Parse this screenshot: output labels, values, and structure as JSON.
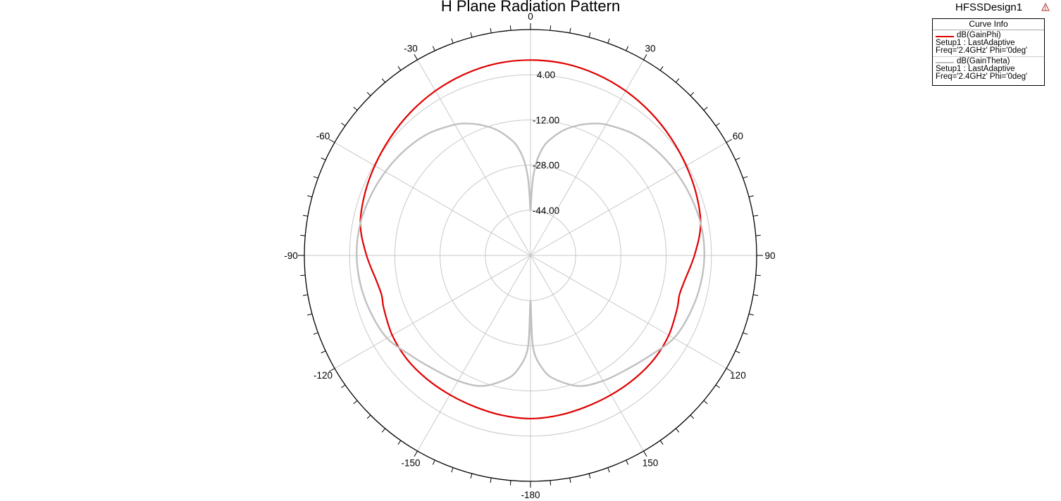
{
  "chart_data": {
    "type": "polar-line",
    "title": "H Plane Radiation Pattern",
    "design_name": "HFSSDesign1",
    "legend": {
      "header": "Curve Info",
      "entries": [
        {
          "name": "dB(GainPhi)",
          "setup": "Setup1 : LastAdaptive",
          "freq": "Freq='2.4GHz' Phi='0deg'",
          "color": "#e00000"
        },
        {
          "name": "dB(GainTheta)",
          "setup": "Setup1 : LastAdaptive",
          "freq": "Freq='2.4GHz' Phi='0deg'",
          "color": "#c0c0c0"
        }
      ]
    },
    "angle_labels": [
      "0",
      "30",
      "60",
      "90",
      "120",
      "150",
      "-180",
      "-150",
      "-120",
      "-90",
      "-60",
      "-30"
    ],
    "angle_values": [
      0,
      30,
      60,
      90,
      120,
      150,
      180,
      -150,
      -120,
      -90,
      -60,
      -30
    ],
    "radial_labels": [
      "4.00",
      "-12.00",
      "-28.00",
      "-44.00"
    ],
    "radial_values": [
      4,
      -12,
      -28,
      -44
    ],
    "r_range": [
      -60,
      20
    ],
    "series": [
      {
        "name": "dB(GainPhi)",
        "theta": [
          0,
          10,
          20,
          30,
          40,
          50,
          60,
          70,
          80,
          90,
          100,
          105,
          110,
          120,
          130,
          140,
          150,
          160,
          170,
          180,
          -170,
          -160,
          -150,
          -140,
          -130,
          -120,
          -110,
          -105,
          -100,
          -90,
          -80,
          -70,
          -60,
          -50,
          -40,
          -30,
          -20,
          -10
        ],
        "values": [
          9.2,
          9.0,
          8.3,
          7.3,
          6.1,
          4.8,
          3.6,
          2.5,
          1.1,
          -2.0,
          -4.9,
          -5.5,
          -4.8,
          -3.5,
          -2.9,
          -2.9,
          -3.0,
          -2.9,
          -2.5,
          -2.2,
          -2.5,
          -2.9,
          -3.0,
          -2.9,
          -2.9,
          -3.5,
          -4.8,
          -5.5,
          -4.9,
          -2.0,
          1.1,
          2.5,
          3.6,
          4.8,
          6.1,
          7.3,
          8.3,
          9.0
        ]
      },
      {
        "name": "dB(GainTheta)",
        "theta": [
          0,
          1,
          2,
          4,
          7,
          10,
          15,
          20,
          25,
          30,
          40,
          50,
          60,
          70,
          80,
          90,
          100,
          110,
          120,
          130,
          140,
          150,
          160,
          170,
          175,
          178,
          179,
          180,
          -179,
          -178,
          -175,
          -170,
          -160,
          -150,
          -140,
          -130,
          -120,
          -110,
          -100,
          -90,
          -80,
          -70,
          -60,
          -50,
          -40,
          -30,
          -25,
          -20,
          -15,
          -10,
          -7,
          -4,
          -2,
          -1
        ],
        "values": [
          -44.0,
          -38.0,
          -32.0,
          -26.0,
          -21.0,
          -18.0,
          -14.0,
          -11.0,
          -8.5,
          -6.5,
          -3.7,
          -2.0,
          -0.7,
          0.4,
          1.3,
          1.5,
          1.0,
          0.0,
          -1.4,
          -4.8,
          -7.2,
          -8.7,
          -10.8,
          -16.0,
          -21.0,
          -26.0,
          -32.0,
          -44.0,
          -32.0,
          -26.0,
          -21.0,
          -16.0,
          -10.8,
          -8.7,
          -7.2,
          -4.8,
          -1.4,
          0.0,
          1.0,
          1.5,
          1.3,
          0.4,
          -0.7,
          -2.0,
          -3.7,
          -6.5,
          -8.5,
          -11.0,
          -14.0,
          -18.0,
          -21.0,
          -26.0,
          -32.0,
          -38.0
        ]
      }
    ],
    "grid": true
  }
}
